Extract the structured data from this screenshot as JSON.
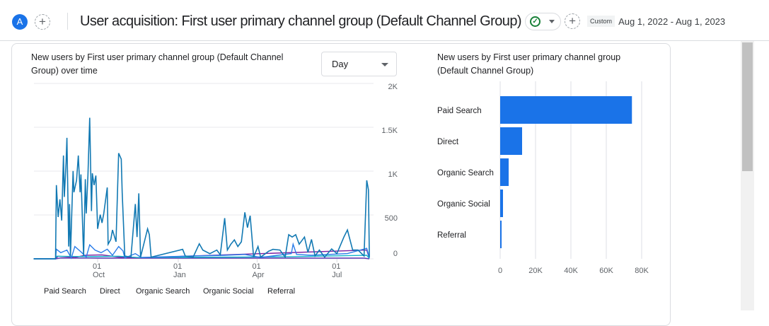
{
  "header": {
    "avatar_letter": "A",
    "add_label": "+",
    "title": "User acquisition: First user primary channel group (Default Channel Group)",
    "status_icon": "check-circle-icon",
    "compare_label": "+",
    "date_chip": "Custom",
    "date_range": "Aug 1, 2022 - Aug 1, 2023"
  },
  "line_card": {
    "title_line1": "New users by First user primary channel group (Default Channel",
    "title_line2": "Group) over time",
    "granularity": "Day"
  },
  "bar_card": {
    "title_line1": "New users by First user primary channel group",
    "title_line2": "(Default Channel Group)"
  },
  "chart_data": [
    {
      "type": "line",
      "title": "New users by First user primary channel group (Default Channel Group) over time",
      "ylim": [
        0,
        2000
      ],
      "yticks": [
        "2K",
        "1.5K",
        "1K",
        "500",
        "0"
      ],
      "xticks": [
        {
          "day": "01",
          "month": "Oct",
          "date": "2022-10-01"
        },
        {
          "day": "01",
          "month": "Jan",
          "date": "2023-01-01"
        },
        {
          "day": "01",
          "month": "Apr",
          "date": "2023-04-01"
        },
        {
          "day": "01",
          "month": "Jul",
          "date": "2023-07-01"
        }
      ],
      "grid": true,
      "legend": "bottom",
      "series": [
        {
          "name": "Paid Search",
          "color": "#1279b3",
          "points": [
            [
              "2022-07-20",
              0
            ],
            [
              "2022-08-14",
              0
            ],
            [
              "2022-08-15",
              840
            ],
            [
              "2022-08-17",
              477
            ],
            [
              "2022-08-19",
              679
            ],
            [
              "2022-08-21",
              437
            ],
            [
              "2022-08-23",
              1178
            ],
            [
              "2022-08-24",
              706
            ],
            [
              "2022-08-26",
              1097
            ],
            [
              "2022-08-27",
              1380
            ],
            [
              "2022-08-29",
              140
            ],
            [
              "2022-08-30",
              625
            ],
            [
              "2022-08-31",
              32
            ],
            [
              "2022-09-03",
              1002
            ],
            [
              "2022-09-04",
              760
            ],
            [
              "2022-09-07",
              895
            ],
            [
              "2022-09-09",
              1178
            ],
            [
              "2022-09-11",
              760
            ],
            [
              "2022-09-12",
              962
            ],
            [
              "2022-09-15",
              32
            ],
            [
              "2022-09-17",
              908
            ],
            [
              "2022-09-18",
              517
            ],
            [
              "2022-09-20",
              949
            ],
            [
              "2022-09-22",
              1609
            ],
            [
              "2022-09-24",
              544
            ],
            [
              "2022-09-25",
              976
            ],
            [
              "2022-09-27",
              840
            ],
            [
              "2022-09-29",
              949
            ],
            [
              "2022-10-01",
              342
            ],
            [
              "2022-10-04",
              504
            ],
            [
              "2022-10-06",
              410
            ],
            [
              "2022-10-08",
              517
            ],
            [
              "2022-10-12",
              814
            ],
            [
              "2022-10-13",
              167
            ],
            [
              "2022-10-16",
              221
            ],
            [
              "2022-10-18",
              329
            ],
            [
              "2022-10-22",
              194
            ],
            [
              "2022-10-25",
              1205
            ],
            [
              "2022-10-28",
              1137
            ],
            [
              "2022-10-29",
              760
            ],
            [
              "2022-11-01",
              32
            ],
            [
              "2022-11-08",
              19
            ],
            [
              "2022-11-13",
              625
            ],
            [
              "2022-11-15",
              248
            ],
            [
              "2022-11-17",
              747
            ],
            [
              "2022-11-19",
              19
            ],
            [
              "2022-11-27",
              342
            ],
            [
              "2022-11-29",
              275
            ],
            [
              "2022-12-01",
              19
            ],
            [
              "2023-01-06",
              108
            ],
            [
              "2023-01-09",
              32
            ],
            [
              "2023-01-18",
              19
            ],
            [
              "2023-01-25",
              172
            ],
            [
              "2023-01-29",
              100
            ],
            [
              "2023-02-06",
              59
            ],
            [
              "2023-02-14",
              100
            ],
            [
              "2023-02-18",
              46
            ],
            [
              "2023-02-23",
              464
            ],
            [
              "2023-02-26",
              100
            ],
            [
              "2023-03-02",
              167
            ],
            [
              "2023-03-06",
              216
            ],
            [
              "2023-03-10",
              140
            ],
            [
              "2023-03-14",
              194
            ],
            [
              "2023-03-18",
              531
            ],
            [
              "2023-03-21",
              356
            ],
            [
              "2023-03-24",
              491
            ],
            [
              "2023-03-28",
              19
            ],
            [
              "2023-04-02",
              140
            ],
            [
              "2023-04-05",
              19
            ],
            [
              "2023-04-14",
              86
            ],
            [
              "2023-04-19",
              108
            ],
            [
              "2023-04-27",
              100
            ],
            [
              "2023-05-03",
              19
            ],
            [
              "2023-05-07",
              275
            ],
            [
              "2023-05-11",
              248
            ],
            [
              "2023-05-15",
              275
            ],
            [
              "2023-05-19",
              167
            ],
            [
              "2023-05-25",
              248
            ],
            [
              "2023-05-29",
              73
            ],
            [
              "2023-06-02",
              221
            ],
            [
              "2023-06-06",
              32
            ],
            [
              "2023-06-11",
              100
            ],
            [
              "2023-06-17",
              19
            ],
            [
              "2023-06-25",
              113
            ],
            [
              "2023-07-01",
              59
            ],
            [
              "2023-07-09",
              248
            ],
            [
              "2023-07-13",
              329
            ],
            [
              "2023-07-19",
              100
            ],
            [
              "2023-07-25",
              100
            ],
            [
              "2023-08-01",
              32
            ],
            [
              "2023-08-04",
              895
            ],
            [
              "2023-08-06",
              787
            ],
            [
              "2023-08-07",
              19
            ]
          ]
        },
        {
          "name": "Direct",
          "color": "#2b7de9",
          "points": [
            [
              "2022-07-20",
              0
            ],
            [
              "2022-08-14",
              0
            ],
            [
              "2022-08-15",
              110
            ],
            [
              "2022-08-20",
              70
            ],
            [
              "2022-08-27",
              100
            ],
            [
              "2022-09-01",
              10
            ],
            [
              "2022-09-05",
              140
            ],
            [
              "2022-09-12",
              80
            ],
            [
              "2022-09-18",
              20
            ],
            [
              "2022-09-22",
              160
            ],
            [
              "2022-09-28",
              100
            ],
            [
              "2022-10-05",
              70
            ],
            [
              "2022-10-12",
              110
            ],
            [
              "2022-10-18",
              40
            ],
            [
              "2022-10-25",
              140
            ],
            [
              "2022-10-30",
              90
            ],
            [
              "2022-11-01",
              10
            ],
            [
              "2022-11-13",
              60
            ],
            [
              "2022-11-20",
              15
            ],
            [
              "2023-01-06",
              30
            ],
            [
              "2023-02-23",
              40
            ],
            [
              "2023-03-18",
              50
            ],
            [
              "2023-04-05",
              15
            ],
            [
              "2023-05-10",
              60
            ],
            [
              "2023-05-12",
              167
            ],
            [
              "2023-05-16",
              50
            ],
            [
              "2023-06-02",
              40
            ],
            [
              "2023-07-13",
              60
            ],
            [
              "2023-08-04",
              120
            ],
            [
              "2023-08-07",
              10
            ]
          ]
        },
        {
          "name": "Organic Search",
          "color": "#12b5cb",
          "points": [
            [
              "2022-07-20",
              0
            ],
            [
              "2022-08-14",
              0
            ],
            [
              "2022-08-15",
              30
            ],
            [
              "2022-09-20",
              25
            ],
            [
              "2022-10-25",
              30
            ],
            [
              "2022-11-15",
              15
            ],
            [
              "2023-03-18",
              20
            ],
            [
              "2023-05-12",
              25
            ],
            [
              "2023-08-04",
              40
            ],
            [
              "2023-08-07",
              5
            ]
          ]
        },
        {
          "name": "Organic Social",
          "color": "#7b1fa2",
          "points": [
            [
              "2022-07-20",
              0
            ],
            [
              "2022-08-14",
              0
            ],
            [
              "2022-08-17",
              30
            ],
            [
              "2022-09-05",
              15
            ],
            [
              "2022-09-17",
              40
            ],
            [
              "2022-10-06",
              45
            ],
            [
              "2022-10-25",
              20
            ],
            [
              "2022-11-10",
              10
            ],
            [
              "2023-08-04",
              100
            ],
            [
              "2023-08-07",
              5
            ]
          ]
        },
        {
          "name": "Referral",
          "color": "#5e35b1",
          "points": [
            [
              "2022-07-20",
              0
            ],
            [
              "2022-08-14",
              0
            ],
            [
              "2022-08-20",
              10
            ],
            [
              "2022-10-01",
              8
            ],
            [
              "2023-08-01",
              8
            ],
            [
              "2023-08-07",
              0
            ]
          ]
        }
      ]
    },
    {
      "type": "bar",
      "orientation": "horizontal",
      "title": "New users by First user primary channel group (Default Channel Group)",
      "categories": [
        "Paid Search",
        "Direct",
        "Organic Search",
        "Organic Social",
        "Referral"
      ],
      "values": [
        74500,
        12400,
        4800,
        1600,
        800
      ],
      "xlim": [
        0,
        80000
      ],
      "xticks": [
        "0",
        "20K",
        "40K",
        "60K",
        "80K"
      ],
      "color": "#1a73e8",
      "grid": true
    }
  ]
}
